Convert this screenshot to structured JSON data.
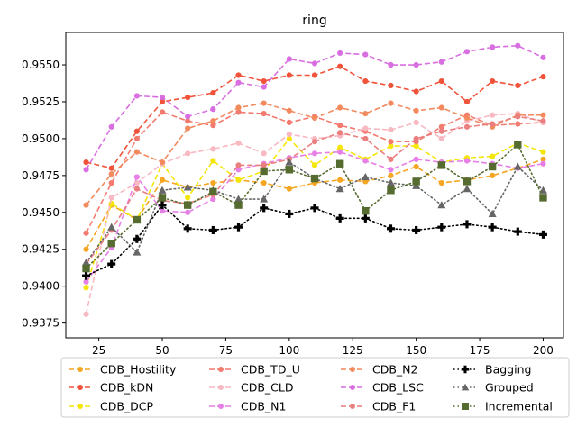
{
  "chart_data": {
    "type": "line",
    "title": "ring",
    "xlabel": "",
    "ylabel": "",
    "xlim": [
      12,
      208
    ],
    "ylim": [
      0.9365,
      0.9572
    ],
    "x_ticks": [
      25,
      50,
      75,
      100,
      125,
      150,
      175,
      200
    ],
    "y_ticks": [
      0.9375,
      0.94,
      0.9425,
      0.945,
      0.9475,
      0.95,
      0.9525,
      0.955
    ],
    "grid": false,
    "legend_position": "below-plot",
    "x": [
      20,
      30,
      40,
      50,
      60,
      70,
      80,
      90,
      100,
      110,
      120,
      130,
      140,
      150,
      160,
      170,
      180,
      190,
      200
    ],
    "series": [
      {
        "name": "CDB_Hostility",
        "color": "#f5a623",
        "dash": "dashed",
        "marker": "circle",
        "values": [
          0.9425,
          0.9455,
          0.9445,
          0.9472,
          0.9467,
          0.947,
          0.9472,
          0.947,
          0.9466,
          0.947,
          0.9472,
          0.9471,
          0.9475,
          0.9481,
          0.947,
          0.9472,
          0.9475,
          0.948,
          0.9486
        ]
      },
      {
        "name": "CDB_kDN",
        "color": "#f0533a",
        "dash": "dashed",
        "marker": "circle",
        "values": [
          0.9484,
          0.948,
          0.9505,
          0.9525,
          0.9528,
          0.9531,
          0.9543,
          0.9539,
          0.9543,
          0.9543,
          0.9549,
          0.9539,
          0.9536,
          0.9532,
          0.9539,
          0.9525,
          0.9539,
          0.9536,
          0.9542
        ]
      },
      {
        "name": "CDB_DCP",
        "color": "#f5e60a",
        "dash": "dashed",
        "marker": "circle",
        "values": [
          0.9399,
          0.9456,
          0.9445,
          0.9483,
          0.946,
          0.9485,
          0.9472,
          0.9478,
          0.95,
          0.9482,
          0.9494,
          0.9486,
          0.9495,
          0.9495,
          0.9484,
          0.9487,
          0.9488,
          0.9497,
          0.9491
        ]
      },
      {
        "name": "CDB_TD_U",
        "color": "#f37a6e",
        "dash": "dashed",
        "marker": "circle",
        "values": [
          0.9436,
          0.947,
          0.95,
          0.9518,
          0.9512,
          0.9509,
          0.9518,
          0.9517,
          0.9511,
          0.9515,
          0.9509,
          0.9505,
          0.9498,
          0.9498,
          0.9508,
          0.9516,
          0.9509,
          0.951,
          0.9511
        ]
      },
      {
        "name": "CDB_CLD",
        "color": "#f8b9c3",
        "dash": "dashed",
        "marker": "circle",
        "values": [
          0.9381,
          0.946,
          0.947,
          0.9483,
          0.949,
          0.9493,
          0.9497,
          0.949,
          0.9503,
          0.95,
          0.9502,
          0.9507,
          0.9506,
          0.9511,
          0.95,
          0.9512,
          0.9516,
          0.9517,
          0.9511
        ]
      },
      {
        "name": "CDB_N1",
        "color": "#e67fe6",
        "dash": "dashed",
        "marker": "circle",
        "values": [
          0.9403,
          0.9426,
          0.9474,
          0.9451,
          0.945,
          0.9459,
          0.9479,
          0.9483,
          0.9487,
          0.949,
          0.9491,
          0.9485,
          0.9479,
          0.9486,
          0.9484,
          0.9485,
          0.9483,
          0.948,
          0.9483
        ]
      },
      {
        "name": "CDB_N2",
        "color": "#f28a5e",
        "dash": "dashed",
        "marker": "circle",
        "values": [
          0.9455,
          0.9476,
          0.9491,
          0.9484,
          0.9507,
          0.9512,
          0.9521,
          0.9524,
          0.9519,
          0.9514,
          0.9521,
          0.9517,
          0.9524,
          0.9519,
          0.9521,
          0.9514,
          0.9508,
          0.9516,
          0.9516
        ]
      },
      {
        "name": "CDB_LSC",
        "color": "#d86ee0",
        "dash": "dashed",
        "marker": "circle",
        "values": [
          0.9479,
          0.9508,
          0.9529,
          0.9528,
          0.9515,
          0.952,
          0.9538,
          0.9535,
          0.9554,
          0.9551,
          0.9558,
          0.9557,
          0.955,
          0.955,
          0.9552,
          0.9559,
          0.9562,
          0.9563,
          0.9555
        ]
      },
      {
        "name": "CDB_F1",
        "color": "#ea7f7f",
        "dash": "dashed",
        "marker": "circle",
        "values": [
          0.9415,
          0.9438,
          0.9466,
          0.9458,
          0.9456,
          0.9462,
          0.9482,
          0.9482,
          0.9486,
          0.9498,
          0.9504,
          0.95,
          0.9486,
          0.95,
          0.9505,
          0.9508,
          0.951,
          0.9515,
          0.9512
        ]
      },
      {
        "name": "Bagging",
        "color": "#000000",
        "dash": "dotted",
        "marker": "plus",
        "values": [
          0.9407,
          0.9415,
          0.9432,
          0.9455,
          0.9439,
          0.9438,
          0.944,
          0.9453,
          0.9449,
          0.9453,
          0.9446,
          0.9446,
          0.9439,
          0.9438,
          0.944,
          0.9442,
          0.944,
          0.9437,
          0.9435
        ]
      },
      {
        "name": "Grouped",
        "color": "#666666",
        "dash": "dotted",
        "marker": "triangle",
        "values": [
          0.9416,
          0.944,
          0.9423,
          0.9465,
          0.9467,
          0.9465,
          0.9459,
          0.9459,
          0.9484,
          0.9473,
          0.9466,
          0.9474,
          0.947,
          0.9468,
          0.9455,
          0.9466,
          0.9449,
          0.9481,
          0.9465
        ]
      },
      {
        "name": "Incremental",
        "color": "#556b2f",
        "dash": "dotted",
        "marker": "square",
        "values": [
          0.9412,
          0.9429,
          0.9445,
          0.946,
          0.9455,
          0.9464,
          0.9455,
          0.9478,
          0.9479,
          0.9473,
          0.9483,
          0.9451,
          0.9465,
          0.9471,
          0.9482,
          0.9471,
          0.9481,
          0.9496,
          0.946
        ]
      }
    ]
  }
}
